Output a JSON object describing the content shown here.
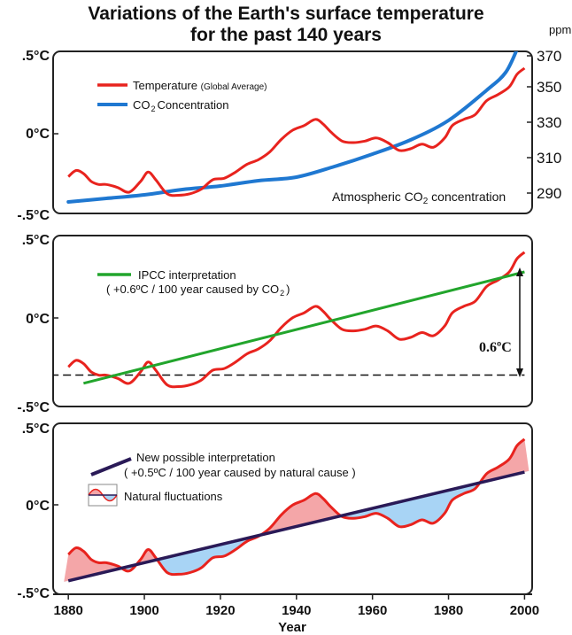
{
  "title": {
    "line1": "Variations of the Earth's surface temperature",
    "line2": "for the past 140 years"
  },
  "chart_data": [
    {
      "type": "line",
      "panel": "top",
      "y_ticks": [
        ".5°C",
        "0°C",
        "-.5°C"
      ],
      "ylim": [
        -0.5,
        0.5
      ],
      "right_axis": {
        "unit_label": "ppm",
        "ticks": [
          "370",
          "350",
          "330",
          "310",
          "290"
        ],
        "ylim": [
          280,
          370
        ]
      },
      "legend": [
        {
          "label": "Temperature",
          "sub": "(Global Average)",
          "color": "#e8231e"
        },
        {
          "label": "CO",
          "subscript": "2",
          "label_after": "Concentration",
          "color": "#1f78d1"
        }
      ],
      "annotation": {
        "text": "Atmospheric CO",
        "subscript": "2",
        "text_after": " concentration"
      },
      "series": [
        {
          "name": "Temperature (Global Average)",
          "color": "#e8231e",
          "x": [
            1880,
            1882,
            1884,
            1886,
            1888,
            1890,
            1893,
            1896,
            1899,
            1901,
            1903,
            1906,
            1909,
            1912,
            1915,
            1918,
            1921,
            1924,
            1927,
            1930,
            1933,
            1936,
            1939,
            1942,
            1945,
            1947,
            1949,
            1952,
            1955,
            1958,
            1961,
            1964,
            1967,
            1970,
            1973,
            1976,
            1979,
            1981,
            1984,
            1987,
            1990,
            1993,
            1996,
            1998,
            2000
          ],
          "y": [
            -0.28,
            -0.24,
            -0.26,
            -0.31,
            -0.33,
            -0.33,
            -0.35,
            -0.38,
            -0.31,
            -0.25,
            -0.3,
            -0.39,
            -0.4,
            -0.39,
            -0.36,
            -0.3,
            -0.29,
            -0.25,
            -0.2,
            -0.17,
            -0.12,
            -0.04,
            0.02,
            0.05,
            0.09,
            0.06,
            0.01,
            -0.05,
            -0.06,
            -0.05,
            -0.03,
            -0.06,
            -0.11,
            -0.1,
            -0.07,
            -0.09,
            -0.03,
            0.05,
            0.09,
            0.12,
            0.21,
            0.25,
            0.3,
            0.38,
            0.42
          ]
        },
        {
          "name": "CO2 Concentration",
          "color": "#1f78d1",
          "axis": "ppm",
          "x": [
            1880,
            1890,
            1900,
            1910,
            1920,
            1930,
            1940,
            1950,
            1960,
            1970,
            1980,
            1990,
            1995,
            1998
          ],
          "y": [
            285,
            287,
            289,
            292,
            294,
            297,
            299,
            305,
            312,
            320,
            331,
            348,
            358,
            371
          ]
        }
      ]
    },
    {
      "type": "line",
      "panel": "middle",
      "y_ticks": [
        ".5°C",
        "0°C",
        "-.5°C"
      ],
      "ylim": [
        -0.5,
        0.5
      ],
      "legend": [
        {
          "label": "IPCC interpretation",
          "color": "#22a52c",
          "line2": "( +0.6ºC / 100 year caused by CO",
          "subscript": "2",
          "line2_after": ")"
        }
      ],
      "difference_label": "0.6ºC",
      "series": [
        {
          "name": "Temperature",
          "color": "#e8231e",
          "same_as": "top.temperature"
        },
        {
          "name": "IPCC interpretation",
          "color": "#22a52c",
          "x": [
            1884,
            2000
          ],
          "y": [
            -0.38,
            0.3
          ]
        },
        {
          "name": "baseline",
          "color": "#111111",
          "dashed": true,
          "x": [
            1880,
            2000
          ],
          "y": [
            -0.33,
            -0.33
          ]
        }
      ]
    },
    {
      "type": "area",
      "panel": "bottom",
      "y_ticks": [
        ".5°C",
        "0°C",
        "-.5°C"
      ],
      "ylim": [
        -0.5,
        0.5
      ],
      "legend": [
        {
          "label": "New possible interpretation",
          "color": "#2a1a57",
          "line2": "( +0.5ºC / 100 year caused by natural cause )"
        },
        {
          "label": "Natural fluctuations",
          "fill_above": "#f4a6a8",
          "fill_below": "#a8d4f5"
        }
      ],
      "series": [
        {
          "name": "Temperature",
          "color": "#e8231e",
          "same_as": "top.temperature"
        },
        {
          "name": "New possible interpretation",
          "color": "#2a1a57",
          "x": [
            1880,
            2000
          ],
          "y": [
            -0.44,
            0.22
          ]
        }
      ]
    }
  ],
  "x_axis": {
    "label": "Year",
    "ticks": [
      "1880",
      "1900",
      "1920",
      "1940",
      "1960",
      "1980",
      "2000"
    ],
    "xlim": [
      1876,
      2002
    ]
  }
}
